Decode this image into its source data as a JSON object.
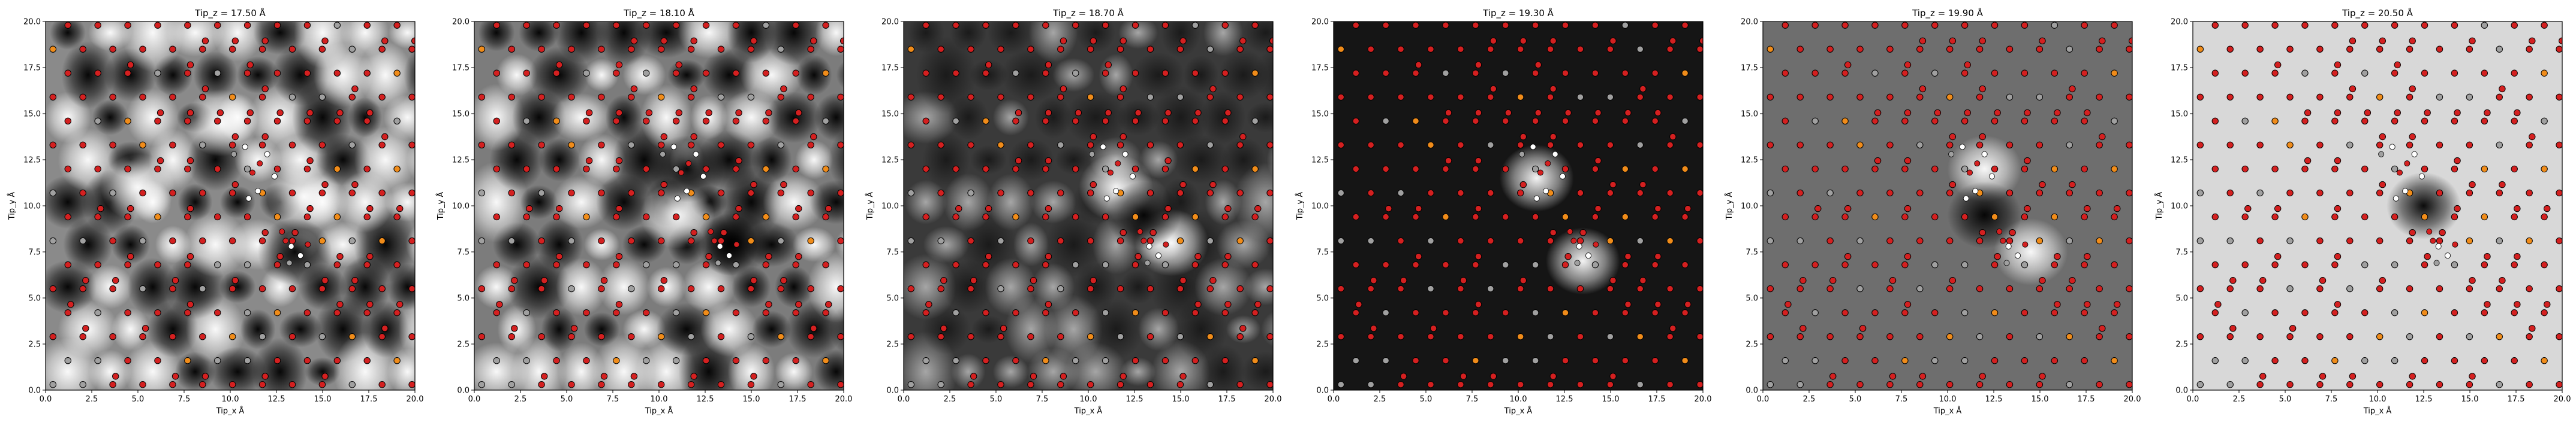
{
  "figure": {
    "panel_count": 6
  },
  "chart_data": [
    {
      "type": "heatmap",
      "title": "Tip_z = 17.50 Å",
      "xlabel": "Tip_x Å",
      "ylabel": "Tip_y Å",
      "xlim": [
        0,
        20
      ],
      "ylim": [
        0,
        20
      ],
      "xticks": [
        "0.0",
        "2.5",
        "5.0",
        "7.5",
        "10.0",
        "12.5",
        "15.0",
        "17.5",
        "20.0"
      ],
      "yticks": [
        "0.0",
        "2.5",
        "5.0",
        "7.5",
        "10.0",
        "12.5",
        "15.0",
        "17.5",
        "20.0"
      ],
      "colormap": "gray",
      "pattern": "bright",
      "features": [
        {
          "x": 9.5,
          "y": 14.5,
          "kind": "bright"
        },
        {
          "x": 14.0,
          "y": 10.5,
          "kind": "bright"
        },
        {
          "x": 5.0,
          "y": 11.0,
          "kind": "bright"
        },
        {
          "x": 13.5,
          "y": 7.5,
          "kind": "dark"
        }
      ]
    },
    {
      "type": "heatmap",
      "title": "Tip_z = 18.10 Å",
      "xlabel": "Tip_x Å",
      "ylabel": "Tip_y Å",
      "xlim": [
        0,
        20
      ],
      "ylim": [
        0,
        20
      ],
      "xticks": [
        "0.0",
        "2.5",
        "5.0",
        "7.5",
        "10.0",
        "12.5",
        "15.0",
        "17.5",
        "20.0"
      ],
      "yticks": [
        "0.0",
        "2.5",
        "5.0",
        "7.5",
        "10.0",
        "12.5",
        "15.0",
        "17.5",
        "20.0"
      ],
      "colormap": "gray",
      "pattern": "medium",
      "features": [
        {
          "x": 11.0,
          "y": 9.5,
          "kind": "bright"
        },
        {
          "x": 14.0,
          "y": 8.0,
          "kind": "dark"
        },
        {
          "x": 11.5,
          "y": 12.0,
          "kind": "dark"
        }
      ]
    },
    {
      "type": "heatmap",
      "title": "Tip_z = 18.70 Å",
      "xlabel": "Tip_x Å",
      "ylabel": "Tip_y Å",
      "xlim": [
        0,
        20
      ],
      "ylim": [
        0,
        20
      ],
      "xticks": [
        "0.0",
        "2.5",
        "5.0",
        "7.5",
        "10.0",
        "12.5",
        "15.0",
        "17.5",
        "20.0"
      ],
      "yticks": [
        "0.0",
        "2.5",
        "5.0",
        "7.5",
        "10.0",
        "12.5",
        "15.0",
        "17.5",
        "20.0"
      ],
      "colormap": "gray",
      "pattern": "darkish",
      "features": [
        {
          "x": 11.5,
          "y": 11.0,
          "kind": "bright"
        },
        {
          "x": 14.5,
          "y": 8.0,
          "kind": "bright"
        },
        {
          "x": 13.0,
          "y": 9.5,
          "kind": "dark"
        }
      ]
    },
    {
      "type": "heatmap",
      "title": "Tip_z = 19.30 Å",
      "xlabel": "Tip_x Å",
      "ylabel": "Tip_y Å",
      "xlim": [
        0,
        20
      ],
      "ylim": [
        0,
        20
      ],
      "xticks": [
        "0.0",
        "2.5",
        "5.0",
        "7.5",
        "10.0",
        "12.5",
        "15.0",
        "17.5",
        "20.0"
      ],
      "yticks": [
        "0.0",
        "2.5",
        "5.0",
        "7.5",
        "10.0",
        "12.5",
        "15.0",
        "17.5",
        "20.0"
      ],
      "colormap": "gray",
      "pattern": "dark",
      "features": [
        {
          "x": 11.0,
          "y": 11.5,
          "kind": "bright"
        },
        {
          "x": 13.5,
          "y": 7.0,
          "kind": "bright"
        }
      ]
    },
    {
      "type": "heatmap",
      "title": "Tip_z = 19.90 Å",
      "xlabel": "Tip_x Å",
      "ylabel": "Tip_y Å",
      "xlim": [
        0,
        20
      ],
      "ylim": [
        0,
        20
      ],
      "xticks": [
        "0.0",
        "2.5",
        "5.0",
        "7.5",
        "10.0",
        "12.5",
        "15.0",
        "17.5",
        "20.0"
      ],
      "yticks": [
        "0.0",
        "2.5",
        "5.0",
        "7.5",
        "10.0",
        "12.5",
        "15.0",
        "17.5",
        "20.0"
      ],
      "colormap": "gray",
      "pattern": "flat",
      "features": [
        {
          "x": 12.0,
          "y": 12.0,
          "kind": "bright"
        },
        {
          "x": 14.5,
          "y": 7.5,
          "kind": "bright"
        },
        {
          "x": 12.0,
          "y": 9.5,
          "kind": "dark"
        }
      ]
    },
    {
      "type": "heatmap",
      "title": "Tip_z = 20.50 Å",
      "xlabel": "Tip_x Å",
      "ylabel": "Tip_y Å",
      "xlim": [
        0,
        20
      ],
      "ylim": [
        0,
        20
      ],
      "xticks": [
        "0.0",
        "2.5",
        "5.0",
        "7.5",
        "10.0",
        "12.5",
        "15.0",
        "17.5",
        "20.0"
      ],
      "yticks": [
        "0.0",
        "2.5",
        "5.0",
        "7.5",
        "10.0",
        "12.5",
        "15.0",
        "17.5",
        "20.0"
      ],
      "colormap": "gray",
      "pattern": "light",
      "features": [
        {
          "x": 12.5,
          "y": 10.0,
          "kind": "dark"
        }
      ]
    }
  ],
  "atoms": {
    "colors": {
      "oxygen": "#d42020",
      "metal": "#f08c1a",
      "grey": "#a0a0a0",
      "hydrogen": "#ffffff",
      "edge": "#000000"
    },
    "molecule": [
      {
        "x": 10.2,
        "y": 12.8,
        "type": "grey"
      },
      {
        "x": 10.8,
        "y": 13.2,
        "type": "hydrogen"
      },
      {
        "x": 11.2,
        "y": 11.8,
        "type": "oxygen"
      },
      {
        "x": 11.6,
        "y": 12.3,
        "type": "oxygen"
      },
      {
        "x": 12.0,
        "y": 12.8,
        "type": "hydrogen"
      },
      {
        "x": 12.4,
        "y": 11.6,
        "type": "hydrogen"
      },
      {
        "x": 11.5,
        "y": 10.8,
        "type": "hydrogen"
      },
      {
        "x": 11.0,
        "y": 10.4,
        "type": "hydrogen"
      },
      {
        "x": 12.8,
        "y": 8.6,
        "type": "oxygen"
      },
      {
        "x": 13.0,
        "y": 8.1,
        "type": "oxygen"
      },
      {
        "x": 13.3,
        "y": 7.8,
        "type": "hydrogen"
      },
      {
        "x": 13.8,
        "y": 7.3,
        "type": "hydrogen"
      },
      {
        "x": 13.2,
        "y": 6.9,
        "type": "grey"
      },
      {
        "x": 14.2,
        "y": 7.9,
        "type": "oxygen"
      }
    ]
  }
}
